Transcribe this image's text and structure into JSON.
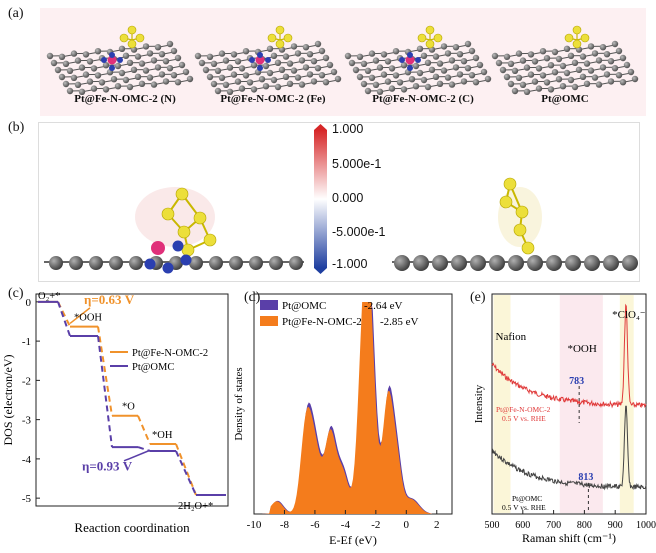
{
  "panels": {
    "a": "(a)",
    "b": "(b)",
    "c": "(c)",
    "d": "(d)",
    "e": "(e)"
  },
  "panel_a": {
    "labels": [
      "Pt@Fe-N-OMC-2 (N)",
      "Pt@Fe-N-OMC-2 (Fe)",
      "Pt@Fe-N-OMC-2 (C)",
      "Pt@OMC"
    ]
  },
  "panel_b": {
    "colorbar_labels": [
      "1.000",
      "5.000e-1",
      "0.000",
      "-5.000e-1",
      "-1.000"
    ],
    "colors": {
      "pos": "#d62728",
      "neg": "#1f3fa0"
    }
  },
  "chart_data": [
    {
      "type": "line",
      "panel": "c",
      "ylabel": "DOS (electron/eV)",
      "xlabel": "Reaction coordination",
      "ylim": [
        -5.2,
        0.2
      ],
      "yticks": [
        0,
        -1,
        -2,
        -3,
        -4,
        -5
      ],
      "steps": [
        "O₂+*",
        "*OOH",
        "*O",
        "*OH",
        "2H₂O+*"
      ],
      "series": [
        {
          "name": "Pt@Fe-N-OMC-2",
          "color": "#f0922b",
          "values": [
            0,
            -0.63,
            -2.9,
            -3.62,
            -4.92
          ]
        },
        {
          "name": "Pt@OMC",
          "color": "#5a3fa8",
          "values": [
            0,
            -0.87,
            -3.7,
            -3.8,
            -4.92
          ]
        }
      ],
      "annotations": {
        "eta1": "η=0.63 V",
        "eta2": "η=0.93 V",
        "ooh": "*OOH",
        "o": "*O",
        "oh": "*OH",
        "start": "O₂+*",
        "end": "2H₂O+*"
      }
    },
    {
      "type": "area",
      "panel": "d",
      "ylabel": "Density of states",
      "xlabel": "E-Ef (eV)",
      "xlim": [
        -10,
        3
      ],
      "xticks": [
        -10,
        -8,
        -6,
        -4,
        -2,
        0,
        2
      ],
      "legend": [
        {
          "name": "Pt@OMC",
          "value": "-2.64 eV",
          "color": "#5a3fa8"
        },
        {
          "name": "Pt@Fe-N-OMC-2",
          "value": "-2.85 eV",
          "color": "#f47c1c"
        }
      ]
    },
    {
      "type": "line",
      "panel": "e",
      "ylabel": "Intensity",
      "xlabel": "Raman shift (cm⁻¹)",
      "xlim": [
        500,
        1000
      ],
      "xticks": [
        500,
        600,
        700,
        800,
        900,
        1000
      ],
      "annotations": {
        "nafion": "Nafion",
        "ooh": "*OOH",
        "clo4": "*ClO₄⁻",
        "p783": "783",
        "p813": "813"
      },
      "series": [
        {
          "name": "Pt@Fe-N-OMC-2",
          "condition": "0.5 V vs. RHE",
          "color": "#e03a3a"
        },
        {
          "name": "Pt@OMC",
          "condition": "0.5 V vs. RHE",
          "color": "#444444"
        }
      ]
    }
  ]
}
